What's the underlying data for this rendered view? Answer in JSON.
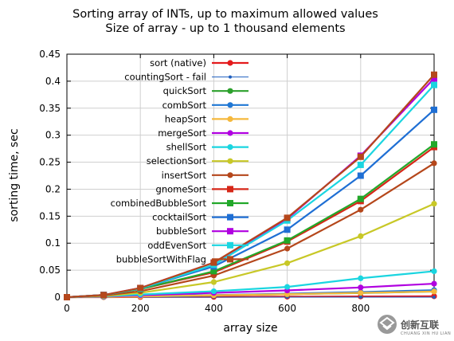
{
  "chart_data": {
    "type": "line",
    "title": [
      "Sorting array of INTs, up to maximum allowed values",
      "Size of array - up to 1 thousand elements"
    ],
    "xlabel": "array size",
    "ylabel": "sorting time, sec",
    "xlim": [
      0,
      1000
    ],
    "ylim": [
      0,
      0.45
    ],
    "xticks": [
      0,
      200,
      400,
      600,
      800
    ],
    "xtick_labels": [
      "0",
      "200",
      "400",
      "600",
      "800"
    ],
    "yticks": [
      0,
      0.05,
      0.1,
      0.15,
      0.2,
      0.25,
      0.3,
      0.35,
      0.4,
      0.45
    ],
    "ytick_labels": [
      "0",
      "0.05",
      "0.1",
      "0.15",
      "0.2",
      "0.25",
      "0.3",
      "0.35",
      "0.4",
      "0.45"
    ],
    "grid": true,
    "legend_position": "top-left",
    "x": [
      0,
      100,
      200,
      400,
      600,
      800,
      1000
    ],
    "series": [
      {
        "name": "sort (native)",
        "color": "#e41a1c",
        "marker": "circle",
        "values": [
          0,
          0,
          0.0003,
          0.0006,
          0.0009,
          0.0013,
          0.0017
        ]
      },
      {
        "name": "countingSort - fail",
        "color": "#1f5fbf",
        "marker": "dot",
        "values": [
          0,
          0,
          0,
          0,
          0,
          0,
          0
        ]
      },
      {
        "name": "quickSort",
        "color": "#2ca02c",
        "marker": "circle",
        "values": [
          0,
          0.0005,
          0.0015,
          0.0035,
          0.0055,
          0.0078,
          0.0105
        ]
      },
      {
        "name": "combSort",
        "color": "#1f77d4",
        "marker": "circle",
        "values": [
          0,
          0.0005,
          0.002,
          0.004,
          0.0065,
          0.0095,
          0.013
        ]
      },
      {
        "name": "heapSort",
        "color": "#f5b83d",
        "marker": "circle",
        "values": [
          0,
          0.0004,
          0.0015,
          0.0035,
          0.0055,
          0.008,
          0.0105
        ]
      },
      {
        "name": "mergeSort",
        "color": "#b000e0",
        "marker": "circle",
        "values": [
          0,
          0.001,
          0.0035,
          0.008,
          0.0125,
          0.018,
          0.025
        ]
      },
      {
        "name": "shellSort",
        "color": "#1ad5e0",
        "marker": "circle",
        "values": [
          0,
          0.0015,
          0.005,
          0.011,
          0.019,
          0.035,
          0.048
        ]
      },
      {
        "name": "selectionSort",
        "color": "#c8c827",
        "marker": "circle",
        "values": [
          0,
          0.002,
          0.008,
          0.028,
          0.063,
          0.113,
          0.173
        ]
      },
      {
        "name": "insertSort",
        "color": "#b5471b",
        "marker": "circle",
        "values": [
          0,
          0.003,
          0.011,
          0.04,
          0.09,
          0.162,
          0.248
        ]
      },
      {
        "name": "gnomeSort",
        "color": "#d62718",
        "marker": "square",
        "values": [
          0,
          0.004,
          0.015,
          0.046,
          0.103,
          0.178,
          0.278
        ]
      },
      {
        "name": "combinedBubbleSort",
        "color": "#22a82a",
        "marker": "square",
        "values": [
          0,
          0.004,
          0.015,
          0.048,
          0.105,
          0.182,
          0.283
        ]
      },
      {
        "name": "cocktailSort",
        "color": "#1f6fd4",
        "marker": "square",
        "values": [
          0,
          0.004,
          0.016,
          0.057,
          0.125,
          0.225,
          0.347
        ]
      },
      {
        "name": "bubbleSort",
        "color": "#b000e0",
        "marker": "square",
        "values": [
          0,
          0.004,
          0.017,
          0.064,
          0.145,
          0.262,
          0.405
        ]
      },
      {
        "name": "oddEvenSort",
        "color": "#1ad5e0",
        "marker": "square",
        "values": [
          0,
          0.004,
          0.016,
          0.06,
          0.142,
          0.245,
          0.393
        ]
      },
      {
        "name": "bubbleSortWithFlag",
        "color": "#b5471b",
        "marker": "square",
        "values": [
          0,
          0.004,
          0.017,
          0.064,
          0.147,
          0.26,
          0.412
        ]
      }
    ]
  },
  "watermark": {
    "text": "创新互联",
    "subtext": "CHUANG XIN HU LIAN",
    "icon": "brand-logo-icon"
  }
}
